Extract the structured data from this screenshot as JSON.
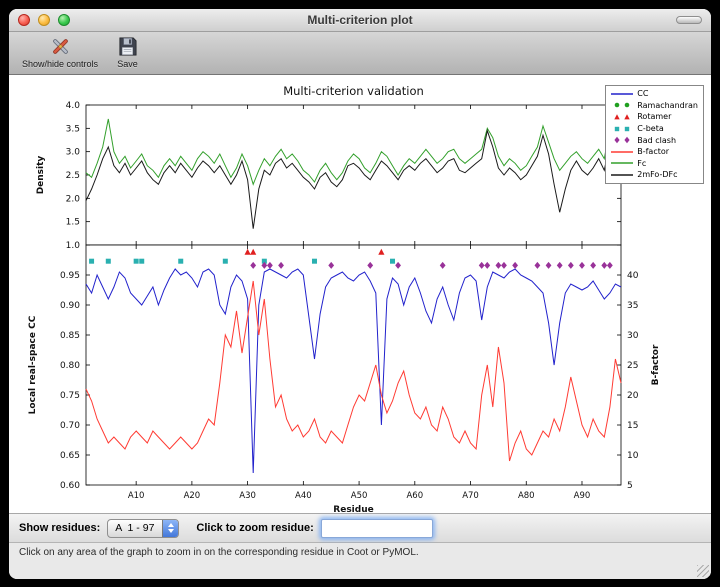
{
  "window": {
    "title": "Multi-criterion plot"
  },
  "toolbar": {
    "items": [
      {
        "label": "Show/hide controls",
        "icon": "tools-icon"
      },
      {
        "label": "Save",
        "icon": "save-icon"
      }
    ]
  },
  "controls": {
    "show_residues_label": "Show residues:",
    "residue_range_value": "A  1 - 97",
    "zoom_label": "Click to zoom residue:",
    "zoom_input_value": ""
  },
  "status_bar": {
    "text": "Click on any area of the graph to zoom in on the corresponding residue in Coot or PyMOL."
  },
  "chart_data": {
    "type": "line",
    "title": "Multi-criterion validation",
    "x_label": "Residue",
    "xlim": [
      1,
      97
    ],
    "x_ticks": [
      10,
      20,
      30,
      40,
      50,
      60,
      70,
      80,
      90
    ],
    "x_tick_labels": [
      "A10",
      "A20",
      "A30",
      "A40",
      "A50",
      "A60",
      "A70",
      "A80",
      "A90"
    ],
    "top_plot": {
      "y_label": "Density",
      "ylim": [
        1.0,
        4.0
      ],
      "y_ticks": [
        1.0,
        1.5,
        2.0,
        2.5,
        3.0,
        3.5,
        4.0
      ],
      "y_tick_labels": [
        "1.0",
        "1.5",
        "2.0",
        "2.5",
        "3.0",
        "3.5",
        "4.0"
      ],
      "series": [
        {
          "name": "Fc",
          "color": "#33a02c",
          "values": [
            2.55,
            2.45,
            2.75,
            3.1,
            3.7,
            3.0,
            2.75,
            2.9,
            2.65,
            2.8,
            2.95,
            2.7,
            2.6,
            2.45,
            2.7,
            2.85,
            2.7,
            2.9,
            2.75,
            2.6,
            2.85,
            3.0,
            2.9,
            2.75,
            2.95,
            2.7,
            2.45,
            2.65,
            2.95,
            2.7,
            2.3,
            2.6,
            2.85,
            2.7,
            2.9,
            3.05,
            2.85,
            2.95,
            2.8,
            2.6,
            2.5,
            2.35,
            2.6,
            2.75,
            2.55,
            2.4,
            2.55,
            2.8,
            2.95,
            2.85,
            2.65,
            2.55,
            2.75,
            3.0,
            2.9,
            2.7,
            2.5,
            2.7,
            2.85,
            2.75,
            2.9,
            3.05,
            2.9,
            2.75,
            2.85,
            3.0,
            3.05,
            2.85,
            2.75,
            2.85,
            2.95,
            3.05,
            3.5,
            3.3,
            2.9,
            2.7,
            2.85,
            2.75,
            2.6,
            2.7,
            2.9,
            3.1,
            3.55,
            3.2,
            2.85,
            2.6,
            2.75,
            2.9,
            3.0,
            2.85,
            2.75,
            2.9,
            3.05,
            2.85,
            3.5,
            3.2,
            3.3
          ]
        },
        {
          "name": "2mFo-DFc",
          "color": "#1a1a1a",
          "values": [
            1.95,
            2.2,
            2.5,
            2.85,
            3.1,
            2.7,
            2.55,
            2.75,
            2.5,
            2.65,
            2.8,
            2.55,
            2.4,
            2.3,
            2.55,
            2.7,
            2.55,
            2.75,
            2.6,
            2.45,
            2.65,
            2.8,
            2.7,
            2.55,
            2.7,
            2.5,
            2.3,
            2.5,
            2.8,
            2.4,
            1.35,
            2.2,
            2.6,
            2.5,
            2.75,
            2.85,
            2.65,
            2.75,
            2.6,
            2.45,
            2.35,
            2.2,
            2.45,
            2.55,
            2.35,
            2.25,
            2.4,
            2.7,
            2.75,
            2.65,
            2.5,
            2.4,
            2.6,
            2.8,
            2.7,
            2.55,
            2.4,
            2.6,
            2.7,
            2.6,
            2.75,
            2.85,
            2.7,
            2.55,
            2.65,
            2.8,
            2.85,
            2.6,
            2.55,
            2.65,
            2.75,
            2.85,
            3.45,
            3.1,
            2.65,
            2.5,
            2.65,
            2.55,
            2.4,
            2.5,
            2.7,
            2.9,
            3.35,
            2.95,
            2.3,
            1.7,
            2.2,
            2.6,
            2.8,
            2.6,
            2.5,
            2.65,
            2.85,
            2.6,
            3.2,
            2.9,
            2.6
          ]
        }
      ]
    },
    "bottom_plot": {
      "y_label_left": "Local real-space CC",
      "ylim_left": [
        0.6,
        1.0
      ],
      "y_ticks_left": [
        0.6,
        0.65,
        0.7,
        0.75,
        0.8,
        0.85,
        0.9,
        0.95
      ],
      "y_tick_labels_left": [
        "0.60",
        "0.65",
        "0.70",
        "0.75",
        "0.80",
        "0.85",
        "0.90",
        "0.95"
      ],
      "y_label_right": "B-factor",
      "ylim_right": [
        5,
        45
      ],
      "y_ticks_right": [
        5,
        10,
        15,
        20,
        25,
        30,
        35,
        40
      ],
      "y_tick_labels_right": [
        "5",
        "10",
        "15",
        "20",
        "25",
        "30",
        "35",
        "40"
      ],
      "series": [
        {
          "name": "CC",
          "axis": "left",
          "color": "#2222cc",
          "values": [
            0.935,
            0.92,
            0.95,
            0.93,
            0.91,
            0.93,
            0.955,
            0.945,
            0.92,
            0.91,
            0.9,
            0.915,
            0.93,
            0.9,
            0.925,
            0.945,
            0.96,
            0.95,
            0.955,
            0.945,
            0.93,
            0.955,
            0.96,
            0.95,
            0.9,
            0.885,
            0.93,
            0.95,
            0.94,
            0.91,
            0.62,
            0.9,
            0.955,
            0.96,
            0.955,
            0.95,
            0.945,
            0.955,
            0.96,
            0.95,
            0.88,
            0.81,
            0.885,
            0.93,
            0.945,
            0.95,
            0.955,
            0.945,
            0.94,
            0.95,
            0.955,
            0.94,
            0.92,
            0.7,
            0.91,
            0.945,
            0.935,
            0.9,
            0.93,
            0.945,
            0.92,
            0.89,
            0.87,
            0.91,
            0.93,
            0.9,
            0.875,
            0.92,
            0.945,
            0.95,
            0.94,
            0.875,
            0.93,
            0.955,
            0.95,
            0.945,
            0.955,
            0.96,
            0.95,
            0.945,
            0.94,
            0.93,
            0.92,
            0.87,
            0.8,
            0.87,
            0.92,
            0.935,
            0.93,
            0.925,
            0.93,
            0.94,
            0.925,
            0.91,
            0.92,
            0.935,
            0.93
          ]
        },
        {
          "name": "B-factor",
          "axis": "right",
          "color": "#ff3b33",
          "values": [
            21,
            19,
            16,
            14,
            12,
            13,
            12,
            11,
            13,
            14,
            13,
            12,
            14,
            13,
            12,
            11,
            12,
            13,
            12,
            11,
            12,
            14,
            16,
            15,
            22,
            30,
            28,
            34,
            27,
            33,
            39,
            30,
            36,
            26,
            18,
            20,
            16,
            14,
            15,
            13,
            14,
            16,
            13,
            12,
            14,
            13,
            12,
            15,
            18,
            20,
            19,
            22,
            25,
            20,
            17,
            19,
            22,
            24,
            20,
            17,
            16,
            18,
            15,
            14,
            18,
            16,
            13,
            12,
            14,
            12,
            11,
            20,
            25,
            18,
            28,
            22,
            9,
            12,
            14,
            11,
            10,
            12,
            14,
            13,
            16,
            14,
            18,
            23,
            19,
            15,
            13,
            16,
            14,
            13,
            18,
            26,
            22
          ]
        }
      ],
      "markers": [
        {
          "name": "Ramachandran",
          "shape": "circle",
          "color": "#20a020",
          "y": 0.988,
          "x": []
        },
        {
          "name": "Rotamer",
          "shape": "triangle",
          "color": "#e02020",
          "y": 0.988,
          "x": [
            30,
            31,
            54
          ]
        },
        {
          "name": "C-beta",
          "shape": "square",
          "color": "#2ab0b0",
          "y": 0.973,
          "x": [
            2,
            5,
            10,
            11,
            18,
            26,
            33,
            42,
            56
          ]
        },
        {
          "name": "Bad clash",
          "shape": "diamond",
          "color": "#993299",
          "y": 0.966,
          "x": [
            31,
            33,
            34,
            36,
            45,
            52,
            57,
            65,
            72,
            73,
            75,
            76,
            78,
            82,
            84,
            86,
            88,
            90,
            92,
            94,
            95
          ]
        }
      ]
    },
    "legend": [
      {
        "label": "CC",
        "type": "line",
        "color": "#2222cc"
      },
      {
        "label": "Ramachandran",
        "type": "circle",
        "color": "#20a020"
      },
      {
        "label": "Rotamer",
        "type": "triangle",
        "color": "#e02020"
      },
      {
        "label": "C-beta",
        "type": "square",
        "color": "#2ab0b0"
      },
      {
        "label": "Bad clash",
        "type": "diamond",
        "color": "#993299"
      },
      {
        "label": "B-factor",
        "type": "line",
        "color": "#ff3b33"
      },
      {
        "label": "Fc",
        "type": "line",
        "color": "#33a02c"
      },
      {
        "label": "2mFo-DFc",
        "type": "line",
        "color": "#1a1a1a"
      }
    ]
  }
}
